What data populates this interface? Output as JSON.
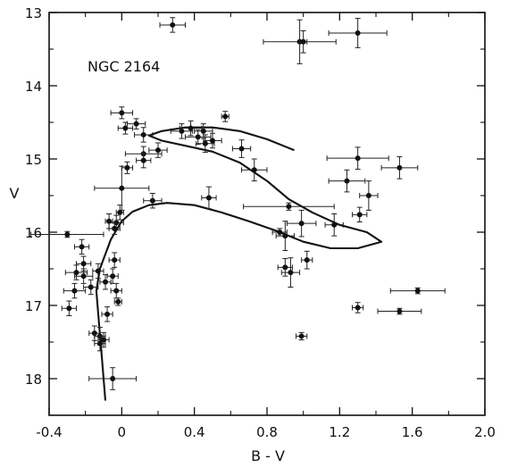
{
  "chart_data": {
    "type": "scatter",
    "title": "",
    "annotation": "NGC 2164",
    "xlabel": "B - V",
    "ylabel": "V",
    "xlim": [
      -0.4,
      2.0
    ],
    "ylim": [
      18.5,
      13.0
    ],
    "y_inverted": true,
    "x_ticks": [
      "-0.4",
      "0",
      "0.4",
      "0.8",
      "1.2",
      "1.6",
      "2.0"
    ],
    "x_tick_values": [
      -0.4,
      0.0,
      0.4,
      0.8,
      1.2,
      1.6,
      2.0
    ],
    "y_ticks": [
      "13",
      "14",
      "15",
      "16",
      "17",
      "18"
    ],
    "y_tick_values": [
      13,
      14,
      15,
      16,
      17,
      18
    ],
    "grid": false,
    "points": [
      {
        "x": 0.28,
        "y": 13.17,
        "xerr": 0.07,
        "yerr": 0.1
      },
      {
        "x": 0.98,
        "y": 13.4,
        "xerr": 0.2,
        "yerr": 0.3
      },
      {
        "x": 1.0,
        "y": 13.4,
        "xerr": 0.02,
        "yerr": 0.15
      },
      {
        "x": 1.3,
        "y": 13.28,
        "xerr": 0.16,
        "yerr": 0.2
      },
      {
        "x": 0.0,
        "y": 14.37,
        "xerr": 0.06,
        "yerr": 0.08
      },
      {
        "x": 0.08,
        "y": 14.52,
        "xerr": 0.05,
        "yerr": 0.07
      },
      {
        "x": 0.02,
        "y": 14.58,
        "xerr": 0.04,
        "yerr": 0.08
      },
      {
        "x": 0.12,
        "y": 14.67,
        "xerr": 0.05,
        "yerr": 0.1
      },
      {
        "x": 0.33,
        "y": 14.62,
        "xerr": 0.06,
        "yerr": 0.1
      },
      {
        "x": 0.38,
        "y": 14.58,
        "xerr": 0.06,
        "yerr": 0.1
      },
      {
        "x": 0.42,
        "y": 14.7,
        "xerr": 0.07,
        "yerr": 0.1
      },
      {
        "x": 0.45,
        "y": 14.62,
        "xerr": 0.05,
        "yerr": 0.1
      },
      {
        "x": 0.46,
        "y": 14.79,
        "xerr": 0.05,
        "yerr": 0.12
      },
      {
        "x": 0.5,
        "y": 14.75,
        "xerr": 0.05,
        "yerr": 0.1
      },
      {
        "x": 0.57,
        "y": 14.42,
        "xerr": 0.02,
        "yerr": 0.07
      },
      {
        "x": 0.66,
        "y": 14.86,
        "xerr": 0.05,
        "yerr": 0.12
      },
      {
        "x": 0.2,
        "y": 14.88,
        "xerr": 0.05,
        "yerr": 0.1
      },
      {
        "x": 0.12,
        "y": 14.93,
        "xerr": 0.1,
        "yerr": 0.1
      },
      {
        "x": 0.12,
        "y": 15.02,
        "xerr": 0.04,
        "yerr": 0.1
      },
      {
        "x": 0.03,
        "y": 15.12,
        "xerr": 0.03,
        "yerr": 0.08
      },
      {
        "x": 0.0,
        "y": 15.4,
        "xerr": 0.15,
        "yerr": 0.3
      },
      {
        "x": 0.73,
        "y": 15.15,
        "xerr": 0.07,
        "yerr": 0.15
      },
      {
        "x": 0.48,
        "y": 15.53,
        "xerr": 0.04,
        "yerr": 0.15
      },
      {
        "x": 0.17,
        "y": 15.57,
        "xerr": 0.05,
        "yerr": 0.1
      },
      {
        "x": 0.92,
        "y": 15.65,
        "xerr": 0.25,
        "yerr": 0.05
      },
      {
        "x": 1.3,
        "y": 14.99,
        "xerr": 0.17,
        "yerr": 0.15
      },
      {
        "x": 1.53,
        "y": 15.12,
        "xerr": 0.1,
        "yerr": 0.15
      },
      {
        "x": 1.24,
        "y": 15.3,
        "xerr": 0.1,
        "yerr": 0.15
      },
      {
        "x": 1.36,
        "y": 15.5,
        "xerr": 0.05,
        "yerr": 0.2
      },
      {
        "x": 1.31,
        "y": 15.76,
        "xerr": 0.04,
        "yerr": 0.1
      },
      {
        "x": -0.01,
        "y": 15.73,
        "xerr": 0.02,
        "yerr": 0.1
      },
      {
        "x": -0.03,
        "y": 15.87,
        "xerr": 0.04,
        "yerr": 0.1
      },
      {
        "x": -0.07,
        "y": 15.85,
        "xerr": 0.02,
        "yerr": 0.1
      },
      {
        "x": -0.04,
        "y": 15.95,
        "xerr": 0.03,
        "yerr": 0.08
      },
      {
        "x": 0.99,
        "y": 15.88,
        "xerr": 0.08,
        "yerr": 0.18
      },
      {
        "x": 1.17,
        "y": 15.9,
        "xerr": 0.05,
        "yerr": 0.15
      },
      {
        "x": 0.87,
        "y": 16.0,
        "xerr": 0.04,
        "yerr": 0.05
      },
      {
        "x": 0.9,
        "y": 16.05,
        "xerr": 0.05,
        "yerr": 0.2
      },
      {
        "x": -0.3,
        "y": 16.03,
        "xerr": 0.2,
        "yerr": 0.04
      },
      {
        "x": -0.22,
        "y": 16.2,
        "xerr": 0.04,
        "yerr": 0.1
      },
      {
        "x": -0.21,
        "y": 16.43,
        "xerr": 0.04,
        "yerr": 0.1
      },
      {
        "x": -0.04,
        "y": 16.38,
        "xerr": 0.03,
        "yerr": 0.1
      },
      {
        "x": -0.25,
        "y": 16.55,
        "xerr": 0.06,
        "yerr": 0.1
      },
      {
        "x": -0.21,
        "y": 16.6,
        "xerr": 0.05,
        "yerr": 0.1
      },
      {
        "x": -0.05,
        "y": 16.6,
        "xerr": 0.03,
        "yerr": 0.1
      },
      {
        "x": -0.13,
        "y": 16.53,
        "xerr": 0.03,
        "yerr": 0.1
      },
      {
        "x": -0.09,
        "y": 16.68,
        "xerr": 0.03,
        "yerr": 0.1
      },
      {
        "x": -0.17,
        "y": 16.75,
        "xerr": 0.04,
        "yerr": 0.1
      },
      {
        "x": -0.26,
        "y": 16.8,
        "xerr": 0.06,
        "yerr": 0.1
      },
      {
        "x": -0.03,
        "y": 16.8,
        "xerr": 0.03,
        "yerr": 0.1
      },
      {
        "x": -0.02,
        "y": 16.95,
        "xerr": 0.02,
        "yerr": 0.05
      },
      {
        "x": -0.29,
        "y": 17.04,
        "xerr": 0.04,
        "yerr": 0.1
      },
      {
        "x": -0.08,
        "y": 17.12,
        "xerr": 0.03,
        "yerr": 0.1
      },
      {
        "x": 0.9,
        "y": 16.48,
        "xerr": 0.04,
        "yerr": 0.12
      },
      {
        "x": 0.93,
        "y": 16.55,
        "xerr": 0.05,
        "yerr": 0.2
      },
      {
        "x": 1.02,
        "y": 16.38,
        "xerr": 0.03,
        "yerr": 0.12
      },
      {
        "x": 1.3,
        "y": 17.03,
        "xerr": 0.03,
        "yerr": 0.07
      },
      {
        "x": 1.63,
        "y": 16.8,
        "xerr": 0.15,
        "yerr": 0.04
      },
      {
        "x": 1.53,
        "y": 17.08,
        "xerr": 0.12,
        "yerr": 0.04
      },
      {
        "x": 0.99,
        "y": 17.42,
        "xerr": 0.03,
        "yerr": 0.05
      },
      {
        "x": -0.15,
        "y": 17.38,
        "xerr": 0.03,
        "yerr": 0.1
      },
      {
        "x": -0.12,
        "y": 17.42,
        "xerr": 0.03,
        "yerr": 0.12
      },
      {
        "x": -0.12,
        "y": 17.52,
        "xerr": 0.03,
        "yerr": 0.1
      },
      {
        "x": -0.1,
        "y": 17.47,
        "xerr": 0.03,
        "yerr": 0.1
      },
      {
        "x": -0.05,
        "y": 18.0,
        "xerr": 0.13,
        "yerr": 0.15
      }
    ],
    "isochrones": [
      [
        [
          -0.09,
          18.3
        ],
        [
          -0.11,
          17.7
        ],
        [
          -0.13,
          17.1
        ],
        [
          -0.14,
          16.8
        ],
        [
          -0.12,
          16.5
        ],
        [
          -0.06,
          16.1
        ],
        [
          0.0,
          15.85
        ],
        [
          0.06,
          15.72
        ],
        [
          0.15,
          15.63
        ],
        [
          0.25,
          15.6
        ],
        [
          0.4,
          15.63
        ],
        [
          0.55,
          15.73
        ],
        [
          0.7,
          15.85
        ],
        [
          0.85,
          15.98
        ],
        [
          1.0,
          16.13
        ],
        [
          1.15,
          16.22
        ],
        [
          1.3,
          16.22
        ],
        [
          1.43,
          16.13
        ],
        [
          1.35,
          16.0
        ],
        [
          1.2,
          15.9
        ],
        [
          1.05,
          15.73
        ],
        [
          0.92,
          15.55
        ],
        [
          0.8,
          15.3
        ],
        [
          0.65,
          15.05
        ],
        [
          0.5,
          14.9
        ],
        [
          0.35,
          14.82
        ],
        [
          0.22,
          14.75
        ],
        [
          0.15,
          14.68
        ],
        [
          0.22,
          14.62
        ],
        [
          0.35,
          14.57
        ],
        [
          0.5,
          14.57
        ],
        [
          0.65,
          14.62
        ],
        [
          0.8,
          14.73
        ],
        [
          0.95,
          14.88
        ]
      ]
    ]
  }
}
